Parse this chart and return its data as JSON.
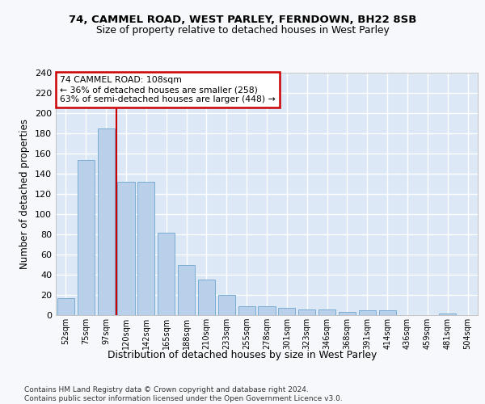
{
  "title1": "74, CAMMEL ROAD, WEST PARLEY, FERNDOWN, BH22 8SB",
  "title2": "Size of property relative to detached houses in West Parley",
  "xlabel": "Distribution of detached houses by size in West Parley",
  "ylabel": "Number of detached properties",
  "bar_color": "#b8d0ea",
  "bar_edge_color": "#7aadd4",
  "background_color": "#dce8f5",
  "grid_color": "#ffffff",
  "annotation_line1": "74 CAMMEL ROAD: 108sqm",
  "annotation_line2": "← 36% of detached houses are smaller (258)",
  "annotation_line3": "63% of semi-detached houses are larger (448) →",
  "vline_color": "#cc0000",
  "vline_position": 2.5,
  "footer": "Contains HM Land Registry data © Crown copyright and database right 2024.\nContains public sector information licensed under the Open Government Licence v3.0.",
  "categories": [
    "52sqm",
    "75sqm",
    "97sqm",
    "120sqm",
    "142sqm",
    "165sqm",
    "188sqm",
    "210sqm",
    "233sqm",
    "255sqm",
    "278sqm",
    "301sqm",
    "323sqm",
    "346sqm",
    "368sqm",
    "391sqm",
    "414sqm",
    "436sqm",
    "459sqm",
    "481sqm",
    "504sqm"
  ],
  "values": [
    17,
    154,
    185,
    132,
    132,
    82,
    50,
    35,
    20,
    9,
    9,
    7,
    6,
    6,
    3,
    5,
    5,
    0,
    0,
    2,
    0
  ],
  "ylim": [
    0,
    240
  ],
  "yticks": [
    0,
    20,
    40,
    60,
    80,
    100,
    120,
    140,
    160,
    180,
    200,
    220,
    240
  ],
  "fig_bg": "#f7f8fb"
}
